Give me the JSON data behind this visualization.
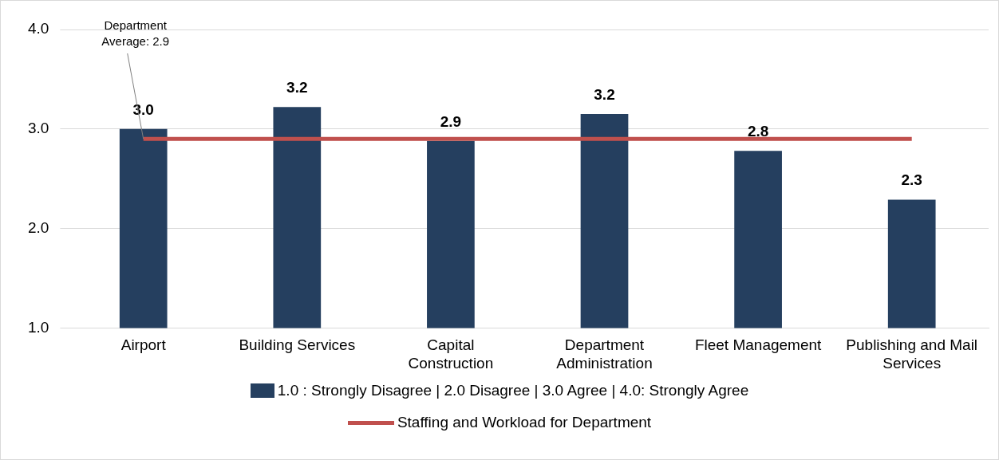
{
  "chart_data": {
    "type": "bar",
    "categories": [
      "Airport",
      "Building Services",
      "Capital Construction",
      "Department Administration",
      "Fleet Management",
      "Publishing and Mail Services"
    ],
    "series": [
      {
        "name": "1.0 : Strongly Disagree | 2.0 Disagree | 3.0 Agree | 4.0: Strongly Agree",
        "color": "#253f5f",
        "values": [
          3.0,
          3.22,
          2.88,
          3.15,
          2.78,
          2.29
        ],
        "value_labels": [
          "3.0",
          "3.2",
          "2.9",
          "3.2",
          "2.8",
          "2.3"
        ]
      },
      {
        "name": "Staffing and Workload for Department",
        "type": "line",
        "color": "#c0504d",
        "values": [
          2.9,
          2.9,
          2.9,
          2.9,
          2.9,
          2.9
        ]
      }
    ],
    "ylim": [
      1,
      4
    ],
    "yticks": [
      {
        "value": 1,
        "label": "1.0"
      },
      {
        "value": 2,
        "label": "2.0"
      },
      {
        "value": 3,
        "label": "3.0"
      },
      {
        "value": 4,
        "label": "4.0"
      }
    ],
    "grid": "y",
    "legend": "bottom",
    "marker": "none",
    "line_style": "solid",
    "annotations": [
      {
        "text": "Department Average: 2.9",
        "x": "Airport",
        "y": 2.9
      }
    ]
  }
}
